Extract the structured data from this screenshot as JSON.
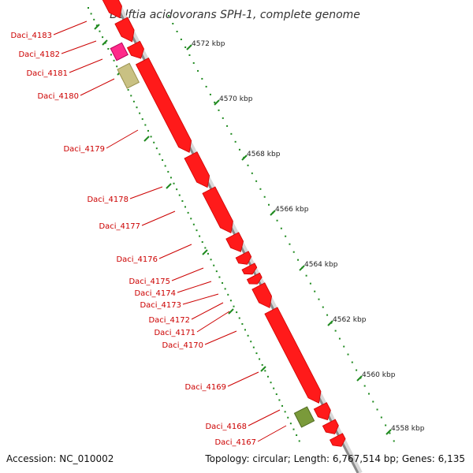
{
  "title": "Delftia acidovorans SPH-1, complete genome",
  "accession": "Accession: NC_010002",
  "topology": "Topology: circular; Length: 6,767,514 bp; Genes: 6,135",
  "colors": {
    "gene": "#ff1a1a",
    "gene_outline": "#cc0000",
    "label": "#cc0000",
    "dots": "#1f8a1f",
    "backbone": "#999999",
    "highlight_magenta": "#ff2a8a",
    "highlight_khaki": "#c9c183",
    "highlight_olive": "#7a9a3a"
  },
  "kbp_labels": [
    "4572 kbp",
    "4570 kbp",
    "4568 kbp",
    "4566 kbp",
    "4564 kbp",
    "4562 kbp",
    "4560 kbp",
    "4558 kbp"
  ],
  "genes": [
    "Daci_4183",
    "Daci_4182",
    "Daci_4181",
    "Daci_4180",
    "Daci_4179",
    "Daci_4178",
    "Daci_4177",
    "Daci_4176",
    "Daci_4175",
    "Daci_4174",
    "Daci_4173",
    "Daci_4172",
    "Daci_4171",
    "Daci_4170",
    "Daci_4169",
    "Daci_4168",
    "Daci_4167"
  ]
}
